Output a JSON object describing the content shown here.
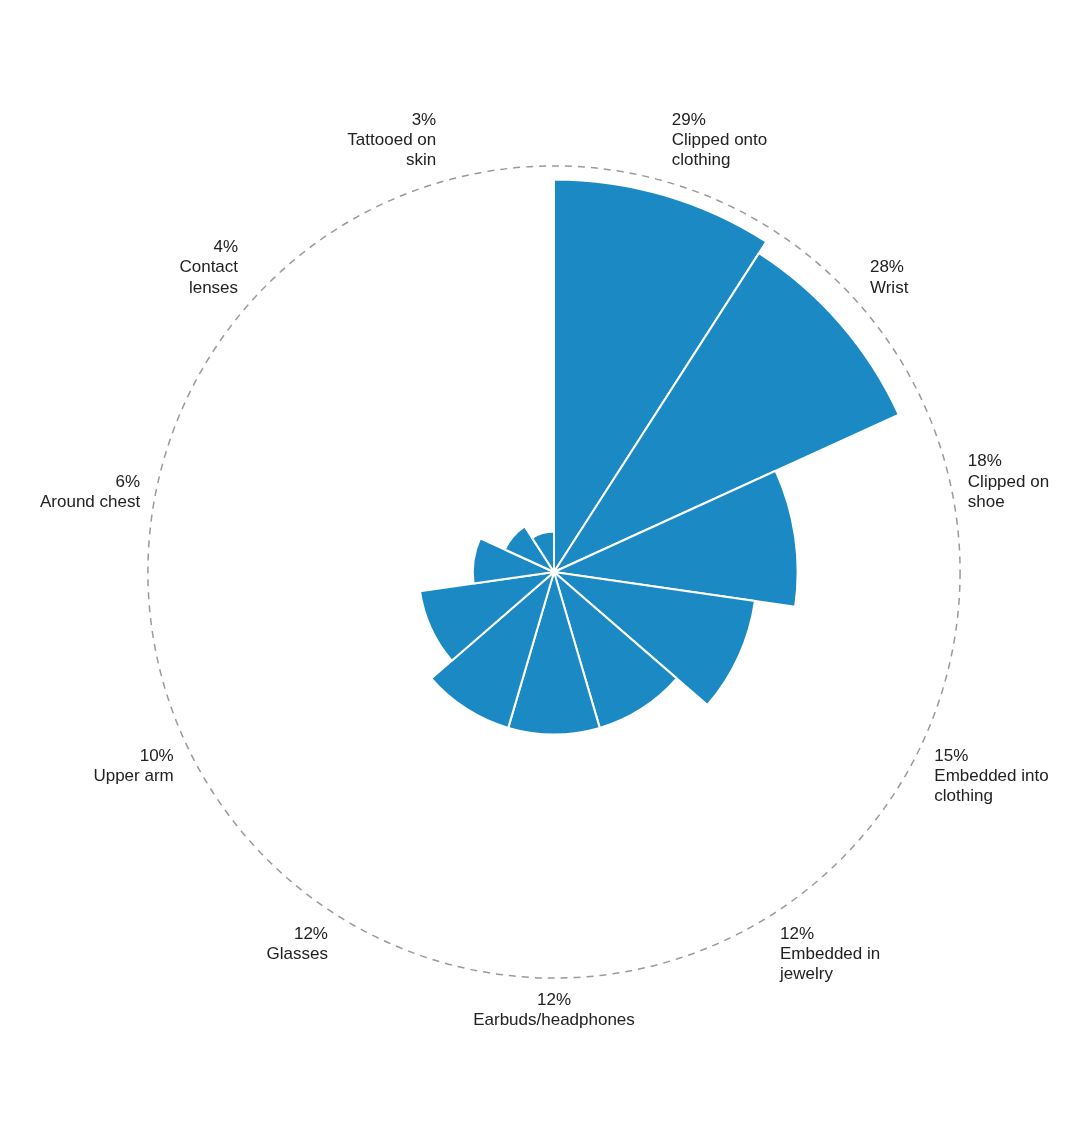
{
  "chart_data": {
    "type": "polarArea",
    "categories": [
      "Clipped onto clothing",
      "Wrist",
      "Clipped on shoe",
      "Embedded into clothing",
      "Embedded in jewelry",
      "Earbuds/headphones",
      "Glasses",
      "Upper arm",
      "Around chest",
      "Contact lenses",
      "Tattooed on skin"
    ],
    "values": [
      29,
      28,
      18,
      15,
      12,
      12,
      12,
      10,
      6,
      4,
      3
    ],
    "value_labels": [
      "29%",
      "28%",
      "18%",
      "15%",
      "12%",
      "12%",
      "12%",
      "10%",
      "6%",
      "4%",
      "3%"
    ],
    "color": "#1b8ac4",
    "ylim": [
      0,
      30
    ],
    "yticks": [
      0,
      30
    ],
    "grid": true,
    "data_labels": true,
    "tick_labels": false
  }
}
